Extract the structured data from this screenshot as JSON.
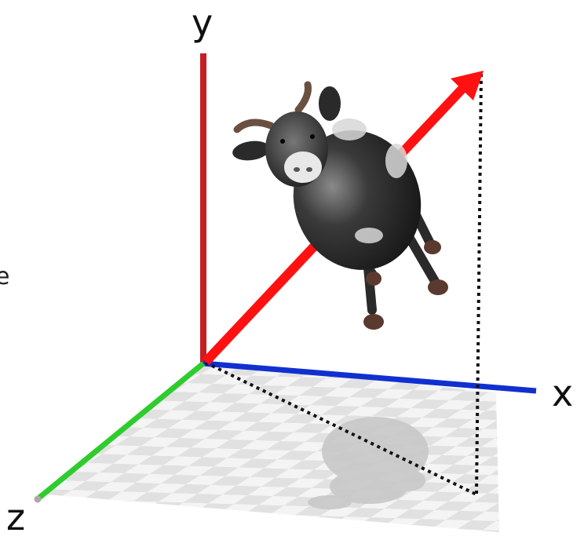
{
  "axes": {
    "x_label": "x",
    "y_label": "y",
    "z_label": "z"
  },
  "edge_glyph": "e",
  "colors": {
    "x_axis": "#1030d0",
    "y_axis": "#c41e24",
    "z_axis": "#2ecc2e",
    "vector": "#ff1111",
    "projection": "#111111",
    "floor_light": "#f2f2f2",
    "floor_dark": "#dcdcdc",
    "shadow": "#c8c8c8"
  },
  "object_icon": "cow-icon",
  "projection_style": "dotted"
}
